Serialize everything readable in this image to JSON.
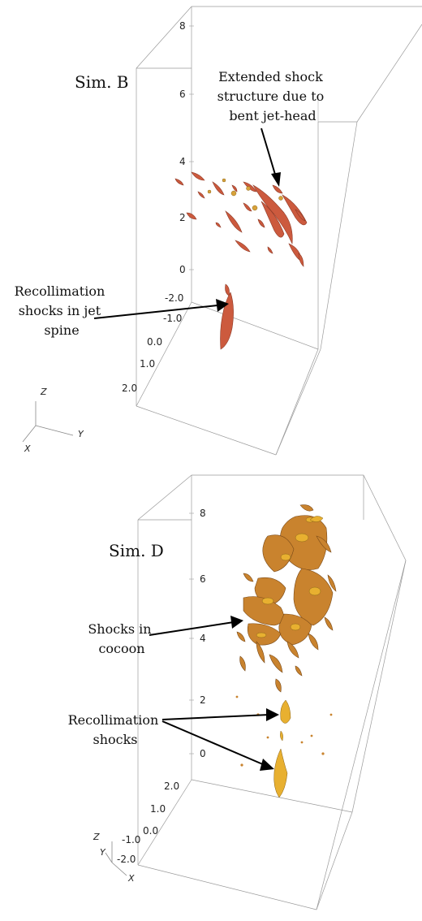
{
  "panels": [
    {
      "title": "Sim. B",
      "z_ticks": [
        "8",
        "6",
        "4",
        "2",
        "0"
      ],
      "y_ticks": [
        "-2.0",
        "-1.0",
        "0.0",
        "1.0",
        "2.0"
      ],
      "axes": {
        "x": "X",
        "y": "Y",
        "z": "Z"
      },
      "annotations": [
        {
          "lines": [
            "Extended shock",
            "structure due to",
            "bent jet-head"
          ]
        },
        {
          "lines": [
            "Recollimation",
            "shocks in jet",
            "spine"
          ]
        }
      ],
      "colors": {
        "shock": "#cc5a3e",
        "shock_alt": "#d8a23a"
      }
    },
    {
      "title": "Sim. D",
      "z_ticks": [
        "8",
        "6",
        "4",
        "2",
        "0"
      ],
      "y_ticks": [
        "2.0",
        "1.0",
        "0.0",
        "-1.0",
        "-2.0"
      ],
      "axes": {
        "x": "X",
        "y": "Y",
        "z": "Z"
      },
      "annotations": [
        {
          "lines": [
            "Shocks in",
            "cocoon"
          ]
        },
        {
          "lines": [
            "Recollimation",
            "shocks"
          ]
        }
      ],
      "colors": {
        "shock": "#c9832e",
        "shock_alt": "#e8b030"
      }
    }
  ]
}
